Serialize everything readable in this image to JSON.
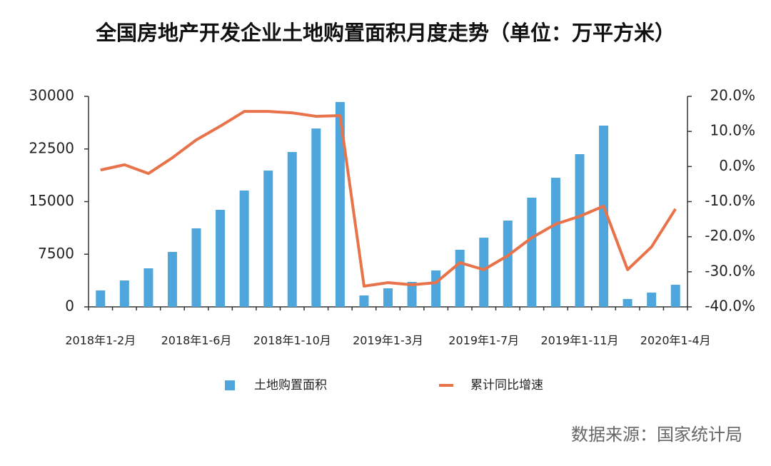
{
  "chart_data": {
    "type": "bar_line",
    "title": "全国房地产开发企业土地购置面积月度走势（单位：万平方米）",
    "source": "数据来源：国家统计局",
    "categories": [
      "2018年1-2月",
      null,
      null,
      null,
      "2018年1-6月",
      null,
      null,
      null,
      "2018年1-10月",
      null,
      null,
      null,
      "2019年1-3月",
      null,
      null,
      null,
      "2019年1-7月",
      null,
      null,
      null,
      "2019年1-11月",
      null,
      null,
      null,
      "2020年1-4月"
    ],
    "series": [
      {
        "name": "土地购置面积",
        "color": "#4ea6dc",
        "type": "bar",
        "values": [
          2340,
          3760,
          5490,
          7830,
          11190,
          13830,
          16580,
          19420,
          22070,
          25420,
          29190,
          1630,
          2640,
          3560,
          5190,
          8140,
          9860,
          12300,
          15560,
          18400,
          21760,
          25830,
          1120,
          2030,
          3150
        ]
      },
      {
        "name": "累计同比增速",
        "color": "#e8734a",
        "type": "line",
        "axis": "y2",
        "values": [
          -1.0,
          0.5,
          -2.0,
          2.5,
          7.6,
          11.5,
          15.7,
          15.7,
          15.3,
          14.3,
          14.5,
          -34.1,
          -33.1,
          -33.7,
          -33.1,
          -27.4,
          -29.4,
          -25.4,
          -20.3,
          -16.4,
          -14.2,
          -11.3,
          -29.4,
          -22.9,
          -12.1
        ]
      }
    ],
    "ylim": [
      0,
      30000
    ],
    "yticks": [
      0,
      7500,
      15000,
      22500,
      30000
    ],
    "y2lim": [
      -40,
      20
    ],
    "y2ticks": [
      {
        "value": -40,
        "label": "-40.0%"
      },
      {
        "value": -30,
        "label": "-30.0%"
      },
      {
        "value": -20,
        "label": "-20.0%"
      },
      {
        "value": -10,
        "label": "-10.0%"
      },
      {
        "value": 0,
        "label": "0.0%"
      },
      {
        "value": 10,
        "label": "10.0%"
      },
      {
        "value": 20,
        "label": "20.0%"
      }
    ]
  }
}
